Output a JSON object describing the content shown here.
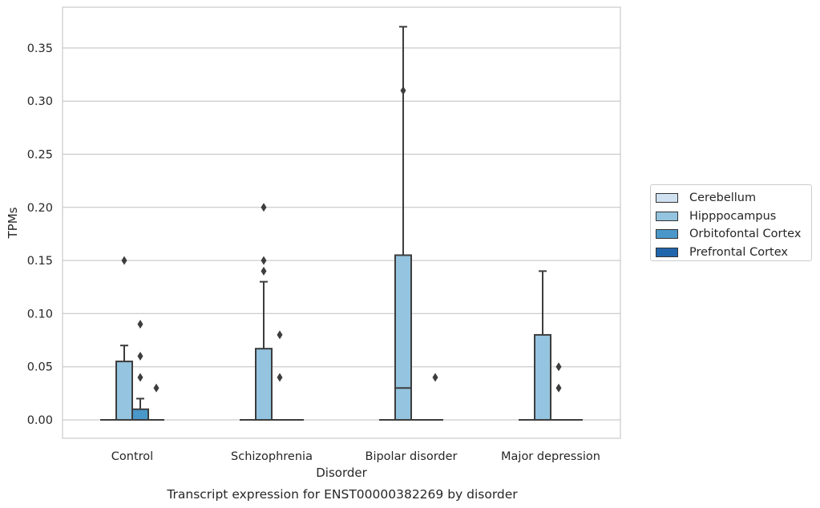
{
  "chart_data": {
    "type": "box",
    "xlabel": "Disorder",
    "ylabel": "TPMs",
    "caption": "Transcript expression for ENST00000382269 by disorder",
    "ylim": [
      -0.018,
      0.388
    ],
    "yticks": [
      "0.00",
      "0.05",
      "0.10",
      "0.15",
      "0.20",
      "0.25",
      "0.30",
      "0.35"
    ],
    "categories": [
      "Control",
      "Schizophrenia",
      "Bipolar disorder",
      "Major depression"
    ],
    "grid": true,
    "legend_position": "right",
    "series": [
      {
        "name": "Cerebellum",
        "color": "#d0e1f2",
        "boxes": [
          {
            "min": 0,
            "q1": 0,
            "median": 0,
            "q3": 0,
            "max": 0,
            "outliers": []
          },
          {
            "min": 0,
            "q1": 0,
            "median": 0,
            "q3": 0,
            "max": 0,
            "outliers": []
          },
          {
            "min": 0,
            "q1": 0,
            "median": 0,
            "q3": 0,
            "max": 0,
            "outliers": []
          },
          {
            "min": 0,
            "q1": 0,
            "median": 0,
            "q3": 0,
            "max": 0,
            "outliers": []
          }
        ]
      },
      {
        "name": "Hipppocampus",
        "color": "#94c4df",
        "boxes": [
          {
            "min": 0,
            "q1": 0,
            "median": 0,
            "q3": 0.055,
            "max": 0.07,
            "outliers": [
              0.15
            ]
          },
          {
            "min": 0,
            "q1": 0,
            "median": 0,
            "q3": 0.067,
            "max": 0.13,
            "outliers": [
              0.14,
              0.15,
              0.2
            ]
          },
          {
            "min": 0,
            "q1": 0,
            "median": 0.03,
            "q3": 0.155,
            "max": 0.37,
            "outliers": [
              0.31
            ]
          },
          {
            "min": 0,
            "q1": 0,
            "median": 0,
            "q3": 0.08,
            "max": 0.14,
            "outliers": []
          }
        ]
      },
      {
        "name": "Orbitofontal Cortex",
        "color": "#4a98c9",
        "boxes": [
          {
            "min": 0,
            "q1": 0,
            "median": 0,
            "q3": 0.01,
            "max": 0.02,
            "outliers": [
              0.04,
              0.06,
              0.09
            ]
          },
          {
            "min": 0,
            "q1": 0,
            "median": 0,
            "q3": 0,
            "max": 0,
            "outliers": [
              0.04,
              0.08
            ]
          },
          {
            "min": 0,
            "q1": 0,
            "median": 0,
            "q3": 0,
            "max": 0,
            "outliers": []
          },
          {
            "min": 0,
            "q1": 0,
            "median": 0,
            "q3": 0,
            "max": 0,
            "outliers": [
              0.03,
              0.05
            ]
          }
        ]
      },
      {
        "name": "Prefrontal Cortex",
        "color": "#2166ac",
        "boxes": [
          {
            "min": 0,
            "q1": 0,
            "median": 0,
            "q3": 0,
            "max": 0,
            "outliers": [
              0.03
            ]
          },
          {
            "min": 0,
            "q1": 0,
            "median": 0,
            "q3": 0,
            "max": 0,
            "outliers": []
          },
          {
            "min": 0,
            "q1": 0,
            "median": 0,
            "q3": 0,
            "max": 0,
            "outliers": [
              0.04
            ]
          },
          {
            "min": 0,
            "q1": 0,
            "median": 0,
            "q3": 0,
            "max": 0,
            "outliers": []
          }
        ]
      }
    ]
  }
}
